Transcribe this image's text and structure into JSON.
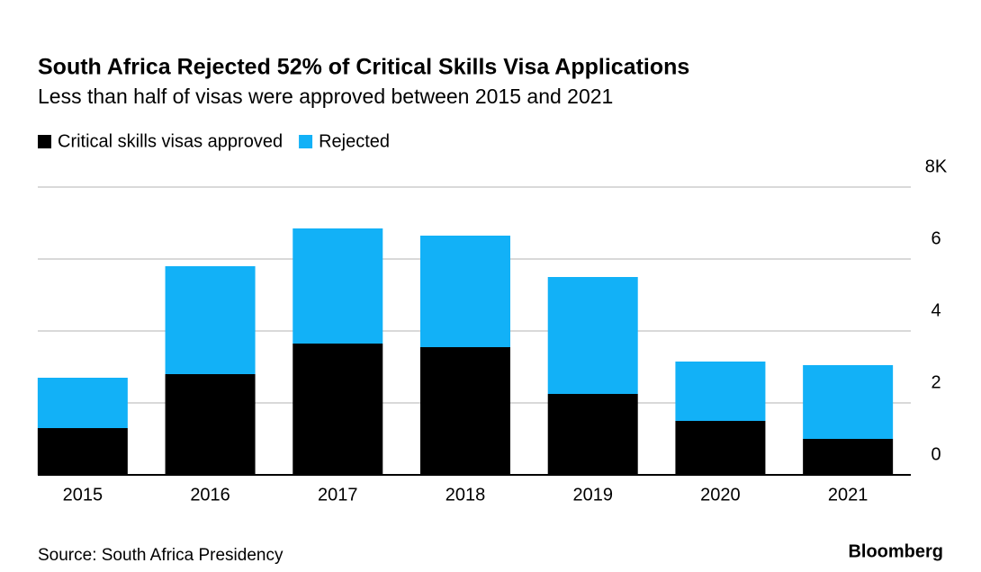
{
  "chart_data": {
    "type": "stacked_bar",
    "title": "South Africa Rejected 52% of Critical Skills Visa Applications",
    "subtitle": "Less than half of visas were approved between 2015 and 2021",
    "categories": [
      "2015",
      "2016",
      "2017",
      "2018",
      "2019",
      "2020",
      "2021"
    ],
    "series": [
      {
        "name": "Critical skills visas approved",
        "color": "#000000",
        "values": [
          1.3,
          2.8,
          3.65,
          3.55,
          2.25,
          1.5,
          1.0
        ]
      },
      {
        "name": "Rejected",
        "color": "#12b1f7",
        "values": [
          1.4,
          3.0,
          3.2,
          3.1,
          3.25,
          1.65,
          2.05
        ]
      }
    ],
    "ylim": [
      0,
      8
    ],
    "yticks": [
      0,
      2,
      4,
      6,
      {
        "value": 8,
        "label": "8K"
      }
    ],
    "grid": true,
    "legend": "top-left",
    "source": "Source: South Africa Presidency",
    "brand": "Bloomberg"
  }
}
